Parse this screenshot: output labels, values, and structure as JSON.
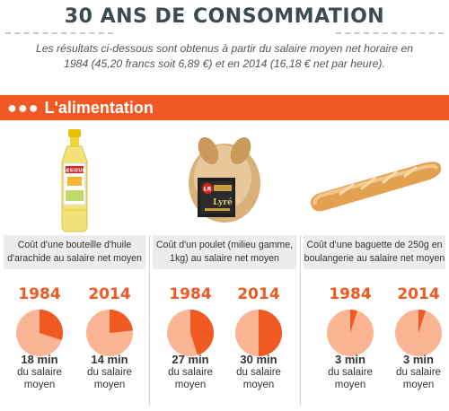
{
  "title": "30 ANS DE CONSOMMATION",
  "intro": "Les résultats ci-dessous sont obtenus à partir du salaire moyen net horaire en 1984 (45,20 francs soit 6,89 €) et en 2014 (16,18 € net par heure).",
  "section": {
    "dots": "●●●",
    "title": "L'alimentation"
  },
  "colors": {
    "accent": "#f05a22",
    "pie_light": "#fbb595",
    "pie_dark": "#f05a22"
  },
  "products": [
    {
      "icon": "oil-bottle-icon",
      "caption": "Coût d'une bouteille d'huile d'arachide au salaire net moyen",
      "stats": [
        {
          "year": "1984",
          "minutes": 18,
          "value": "18 min",
          "label_line1": "du salaire",
          "label_line2": "moyen"
        },
        {
          "year": "2014",
          "minutes": 14,
          "value": "14 min",
          "label_line1": "du salaire",
          "label_line2": "moyen"
        }
      ]
    },
    {
      "icon": "roast-chicken-icon",
      "caption": "Coût d'un poulet (milieu gamme, 1kg) au salaire net moyen",
      "stats": [
        {
          "year": "1984",
          "minutes": 27,
          "value": "27 min",
          "label_line1": "du salaire",
          "label_line2": "moyen"
        },
        {
          "year": "2014",
          "minutes": 30,
          "value": "30 min",
          "label_line1": "du salaire",
          "label_line2": "moyen"
        }
      ]
    },
    {
      "icon": "baguette-icon",
      "caption": "Coût d'une baguette de 250g en boulangerie au salaire net moyen",
      "stats": [
        {
          "year": "1984",
          "minutes": 3,
          "value": "3 min",
          "label_line1": "du salaire",
          "label_line2": "moyen"
        },
        {
          "year": "2014",
          "minutes": 3,
          "value": "3 min",
          "label_line1": "du salaire",
          "label_line2": "moyen"
        }
      ]
    }
  ]
}
